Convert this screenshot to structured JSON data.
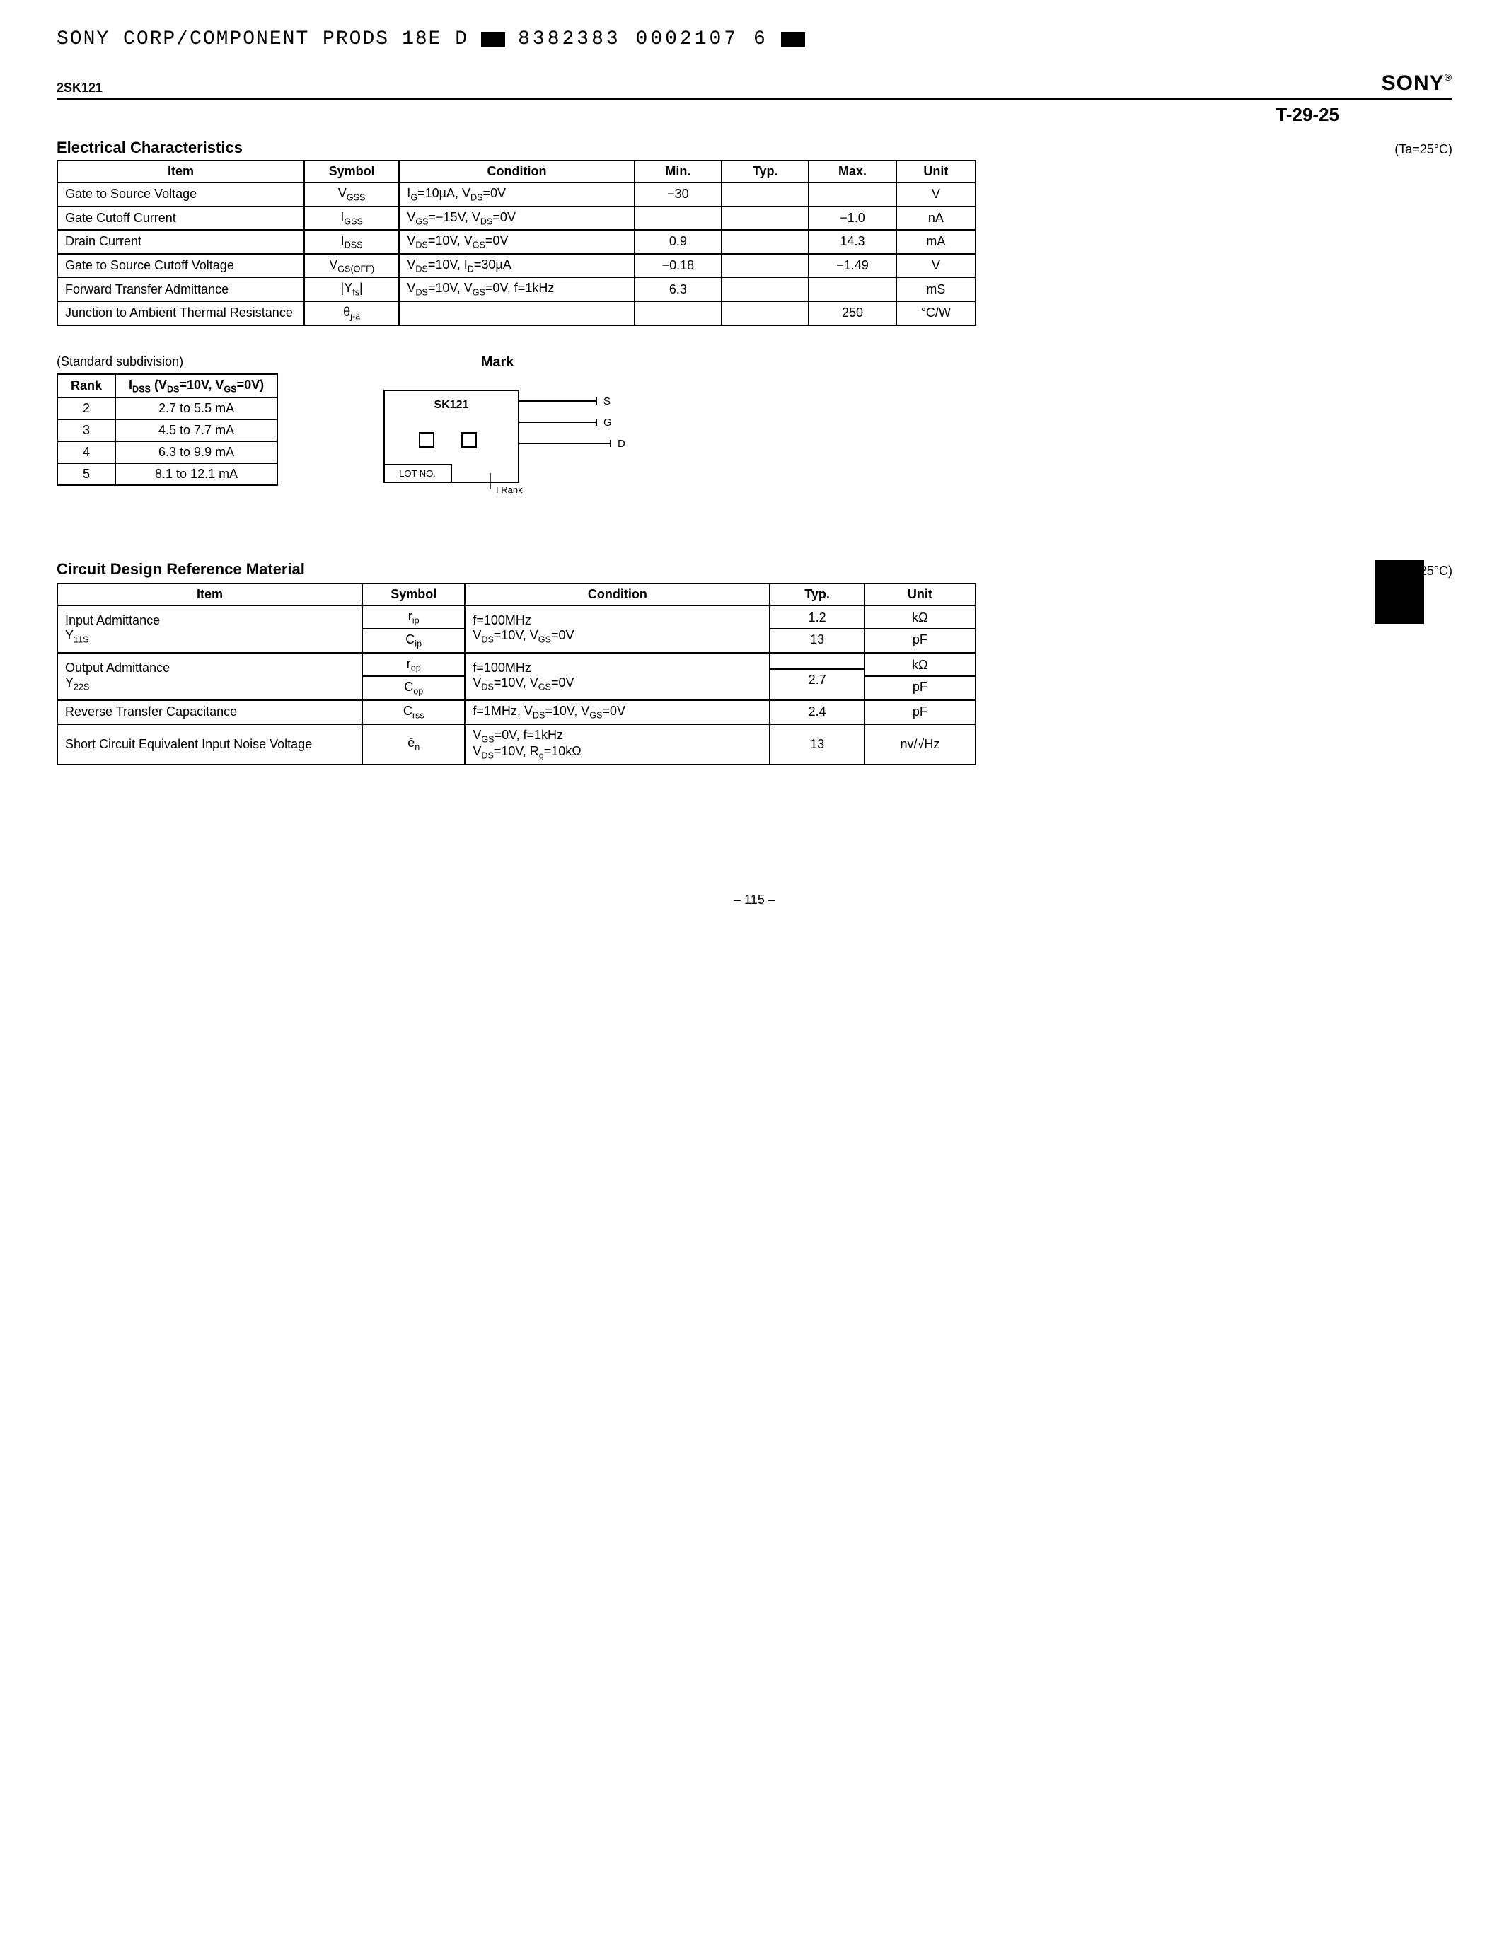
{
  "header": {
    "company": "SONY CORP/COMPONENT PRODS",
    "code1": "18E D",
    "code2": "8382383 0002107 6"
  },
  "part_no": "2SK121",
  "brand": "SONY",
  "doc_ref": "T-29-25",
  "temp_note": "(Ta=25°C)",
  "elec_title": "Electrical Characteristics",
  "elec_headers": {
    "item": "Item",
    "symbol": "Symbol",
    "condition": "Condition",
    "min": "Min.",
    "typ": "Typ.",
    "max": "Max.",
    "unit": "Unit"
  },
  "elec_rows": [
    {
      "item": "Gate to Source Voltage",
      "symbol": "V<sub>GSS</sub>",
      "condition": "I<sub>G</sub>=10µA, V<sub>DS</sub>=0V",
      "min": "−30",
      "typ": "",
      "max": "",
      "unit": "V"
    },
    {
      "item": "Gate Cutoff Current",
      "symbol": "I<sub>GSS</sub>",
      "condition": "V<sub>GS</sub>=−15V, V<sub>DS</sub>=0V",
      "min": "",
      "typ": "",
      "max": "−1.0",
      "unit": "nA"
    },
    {
      "item": "Drain Current",
      "symbol": "I<sub>DSS</sub>",
      "condition": "V<sub>DS</sub>=10V, V<sub>GS</sub>=0V",
      "min": "0.9",
      "typ": "",
      "max": "14.3",
      "unit": "mA"
    },
    {
      "item": "Gate to Source Cutoff Voltage",
      "symbol": "V<sub>GS(OFF)</sub>",
      "condition": "V<sub>DS</sub>=10V, I<sub>D</sub>=30µA",
      "min": "−0.18",
      "typ": "",
      "max": "−1.49",
      "unit": "V"
    },
    {
      "item": "Forward Transfer Admittance",
      "symbol": "|Y<sub>fs</sub>|",
      "condition": "V<sub>DS</sub>=10V, V<sub>GS</sub>=0V, f=1kHz",
      "min": "6.3",
      "typ": "",
      "max": "",
      "unit": "mS"
    },
    {
      "item": "Junction to Ambient Thermal Resistance",
      "symbol": "θ<sub>j-a</sub>",
      "condition": "",
      "min": "",
      "typ": "",
      "max": "250",
      "unit": "°C/W"
    }
  ],
  "subdivision_caption": "(Standard subdivision)",
  "rank_headers": {
    "rank": "Rank",
    "idss": "I<sub>DSS</sub> (V<sub>DS</sub>=10V, V<sub>GS</sub>=0V)"
  },
  "rank_rows": [
    {
      "rank": "2",
      "val": "2.7 to 5.5 mA"
    },
    {
      "rank": "3",
      "val": "4.5 to 7.7 mA"
    },
    {
      "rank": "4",
      "val": "6.3 to 9.9 mA"
    },
    {
      "rank": "5",
      "val": "8.1 to 12.1 mA"
    }
  ],
  "mark_title": "Mark",
  "mark": {
    "chip": "SK121",
    "lot": "LOT NO.",
    "idss": "I<sub>DSS</sub> Rank",
    "s": "S",
    "g": "G",
    "d": "D"
  },
  "design_title": "Circuit Design Reference Material",
  "design_headers": {
    "item": "Item",
    "symbol": "Symbol",
    "condition": "Condition",
    "typ": "Typ.",
    "unit": "Unit"
  },
  "design_rows": [
    {
      "item": "Input Admittance<br>Y<sub>11S</sub>",
      "symbol": [
        "r<sub>ip</sub>",
        "C<sub>ip</sub>"
      ],
      "condition": "f=100MHz<br>V<sub>DS</sub>=10V, V<sub>GS</sub>=0V",
      "typ": [
        "1.2",
        "13"
      ],
      "unit": [
        "kΩ",
        "pF"
      ]
    },
    {
      "item": "Output Admittance<br>Y<sub>22S</sub>",
      "symbol": [
        "r<sub>op</sub>",
        "C<sub>op</sub>"
      ],
      "condition": "f=100MHz<br>V<sub>DS</sub>=10V, V<sub>GS</sub>=0V",
      "typ": [
        "",
        "2.7"
      ],
      "unit": [
        "kΩ",
        "pF"
      ]
    },
    {
      "item": "Reverse Transfer Capacitance",
      "symbol": "C<sub>rss</sub>",
      "condition": "f=1MHz, V<sub>DS</sub>=10V, V<sub>GS</sub>=0V",
      "typ": "2.4",
      "unit": "pF"
    },
    {
      "item": "Short Circuit Equivalent Input Noise Voltage",
      "symbol": "ē<sub>n</sub>",
      "condition": "V<sub>GS</sub>=0V, f=1kHz<br>V<sub>DS</sub>=10V, R<sub>g</sub>=10kΩ",
      "typ": "13",
      "unit": "nv/√Hz"
    }
  ],
  "page_no": "– 115 –"
}
